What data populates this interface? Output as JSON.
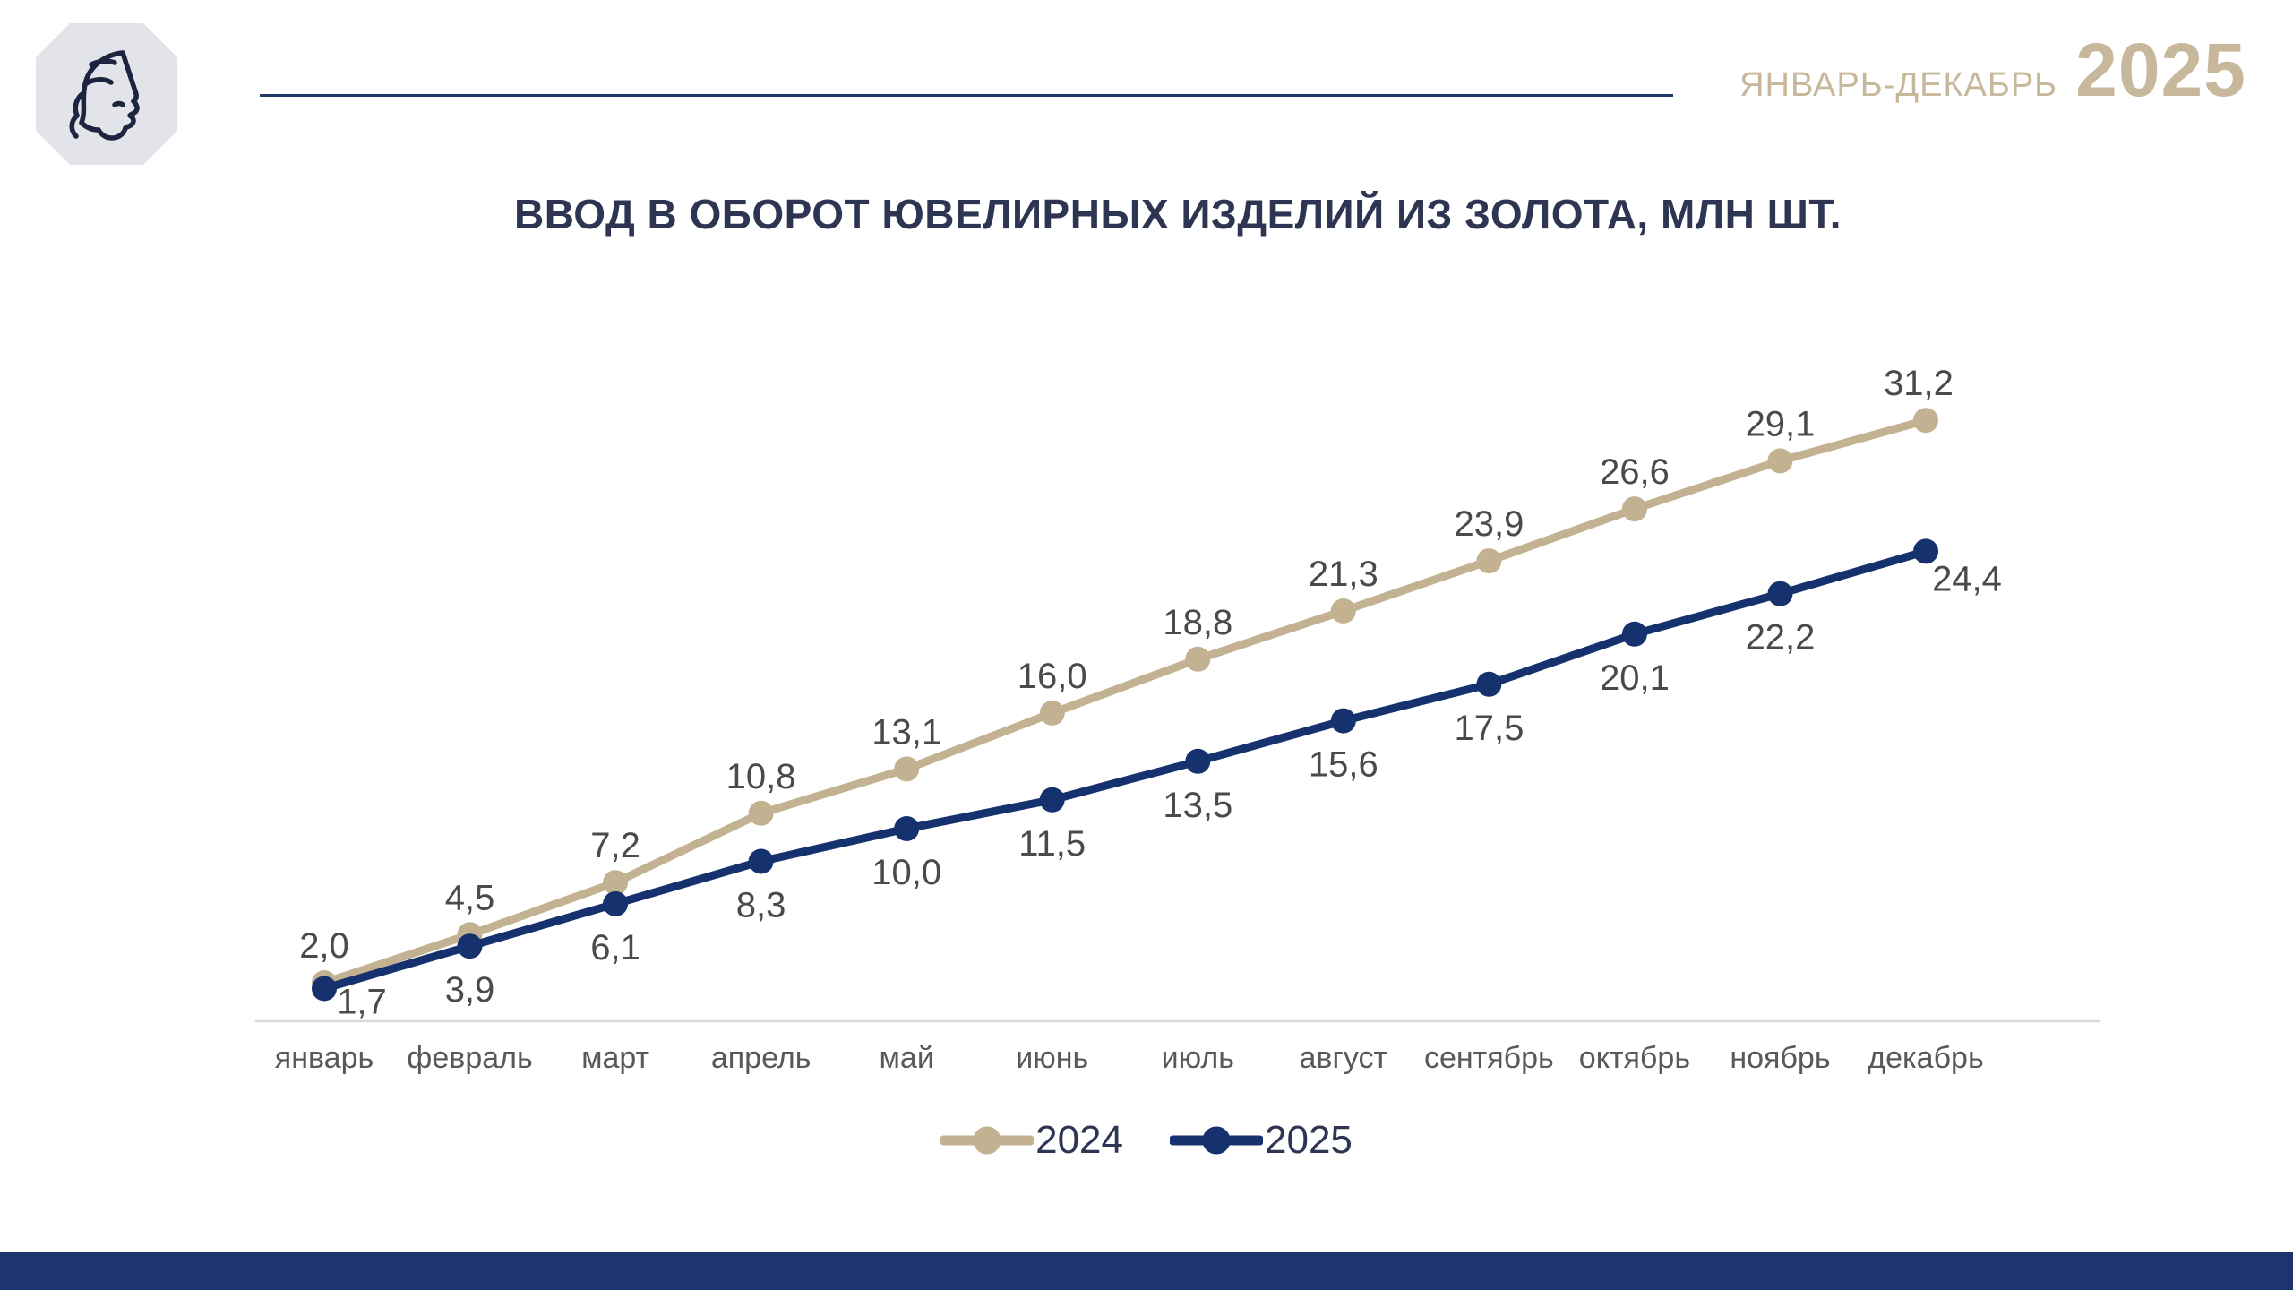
{
  "header": {
    "period_label": "ЯНВАРЬ-ДЕКАБРЬ",
    "year": "2025",
    "logo": "assay-chamber-woman-profile-logo"
  },
  "chart_data": {
    "type": "line",
    "title": "ВВОД В ОБОРОТ ЮВЕЛИРНЫХ ИЗДЕЛИЙ ИЗ ЗОЛОТА, МЛН ШТ.",
    "categories": [
      "январь",
      "февраль",
      "март",
      "апрель",
      "май",
      "июнь",
      "июль",
      "август",
      "сентябрь",
      "октябрь",
      "ноябрь",
      "декабрь"
    ],
    "series": [
      {
        "name": "2024",
        "color": "#c3b291",
        "values": [
          2.0,
          4.5,
          7.2,
          10.8,
          13.1,
          16.0,
          18.8,
          21.3,
          23.9,
          26.6,
          29.1,
          31.2
        ],
        "labels": [
          "2,0",
          "4,5",
          "7,2",
          "10,8",
          "13,1",
          "16,0",
          "18,8",
          "21,3",
          "23,9",
          "26,6",
          "29,1",
          "31,2"
        ]
      },
      {
        "name": "2025",
        "color": "#15316e",
        "values": [
          1.7,
          3.9,
          6.1,
          8.3,
          10.0,
          11.5,
          13.5,
          15.6,
          17.5,
          20.1,
          22.2,
          24.4
        ],
        "labels": [
          "1,7",
          "3,9",
          "6,1",
          "8,3",
          "10,0",
          "11,5",
          "13,5",
          "15,6",
          "17,5",
          "20,1",
          "22,2",
          "24,4"
        ]
      }
    ],
    "ylim": [
      0,
      33
    ],
    "grid": false,
    "y_axis_visible": false,
    "legend_position": "bottom",
    "value_label_color": "#4a4a4a",
    "axis_label_color": "#595959",
    "axis_line_color": "#d9d9d9"
  },
  "colors": {
    "accent_navy": "#1f3968",
    "accent_gold": "#c7b89b",
    "title_navy": "#2e3552",
    "footer_navy": "#1c3570",
    "logo_background": "#e2e4e9",
    "logo_stroke": "#1d2440"
  }
}
